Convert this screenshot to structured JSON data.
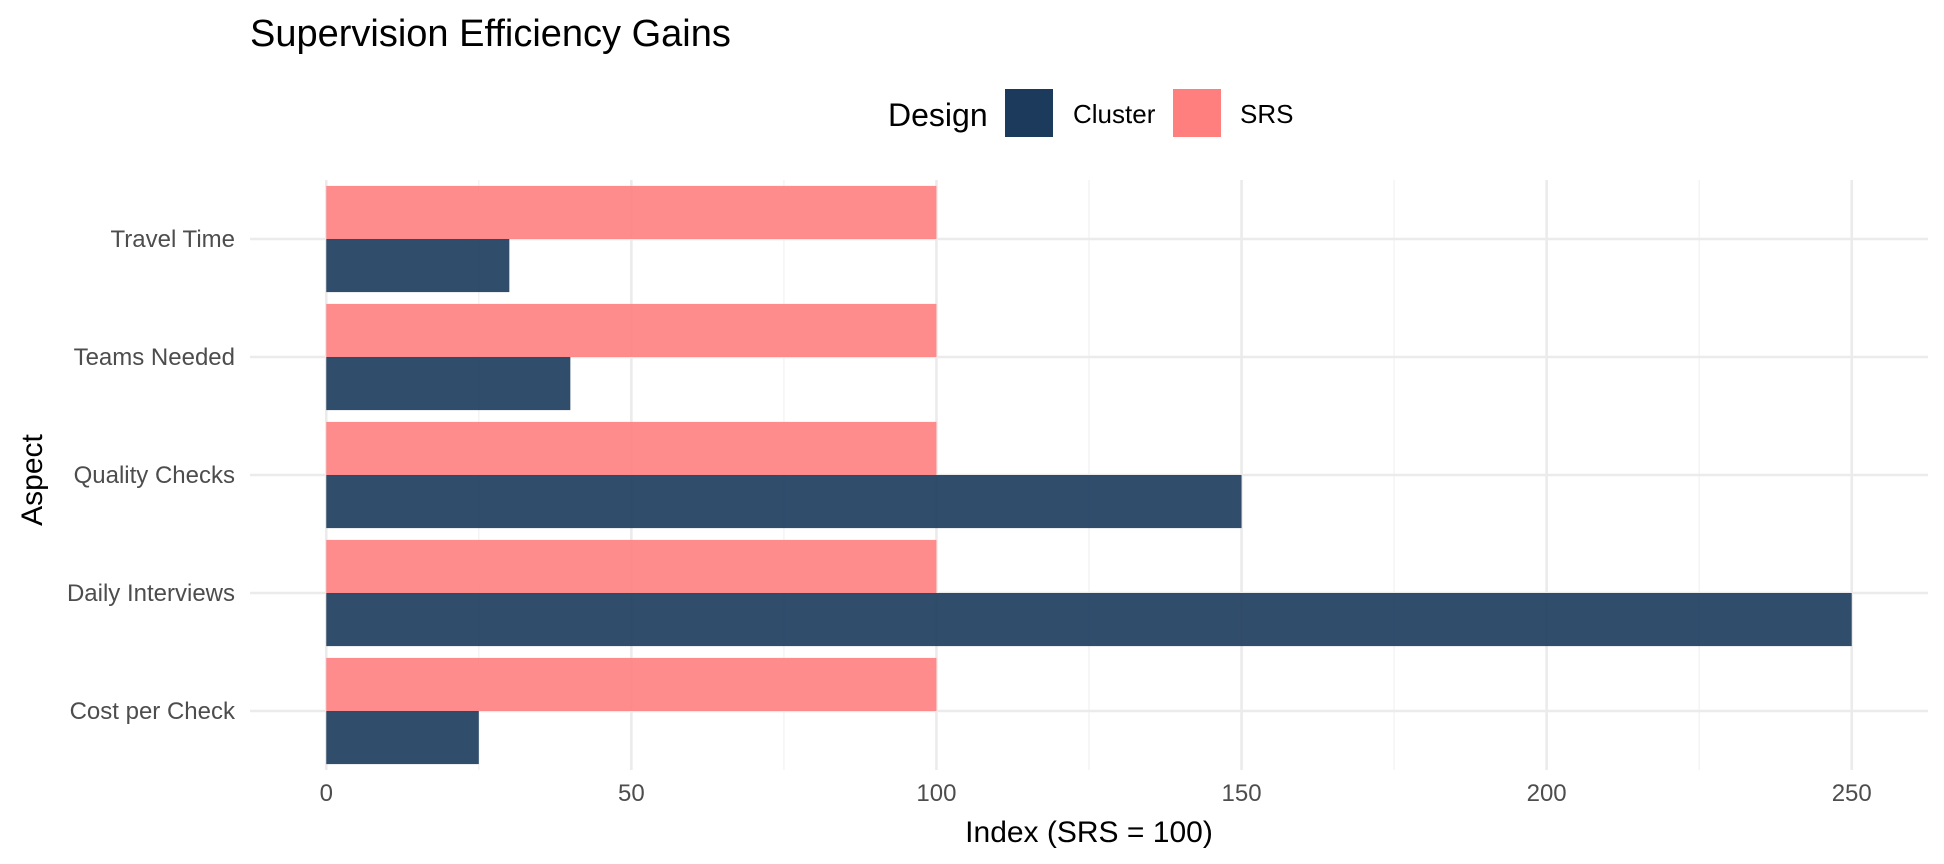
{
  "chart_data": {
    "type": "bar",
    "orientation": "horizontal",
    "title": "Supervision Efficiency Gains",
    "xlabel": "Index (SRS = 100)",
    "ylabel": "Aspect",
    "categories": [
      "Cost per Check",
      "Daily Interviews",
      "Quality Checks",
      "Teams Needed",
      "Travel Time"
    ],
    "series": [
      {
        "name": "Cluster",
        "color": "#1b3a5c",
        "values": [
          25,
          250,
          150,
          40,
          30
        ]
      },
      {
        "name": "SRS",
        "color": "#ff7f7f",
        "values": [
          100,
          100,
          100,
          100,
          100
        ]
      }
    ],
    "xlim": [
      -12.5,
      262.5
    ],
    "xticks": [
      0,
      50,
      100,
      150,
      200,
      250
    ],
    "legend": {
      "title": "Design",
      "position": "top"
    },
    "grid": true
  }
}
